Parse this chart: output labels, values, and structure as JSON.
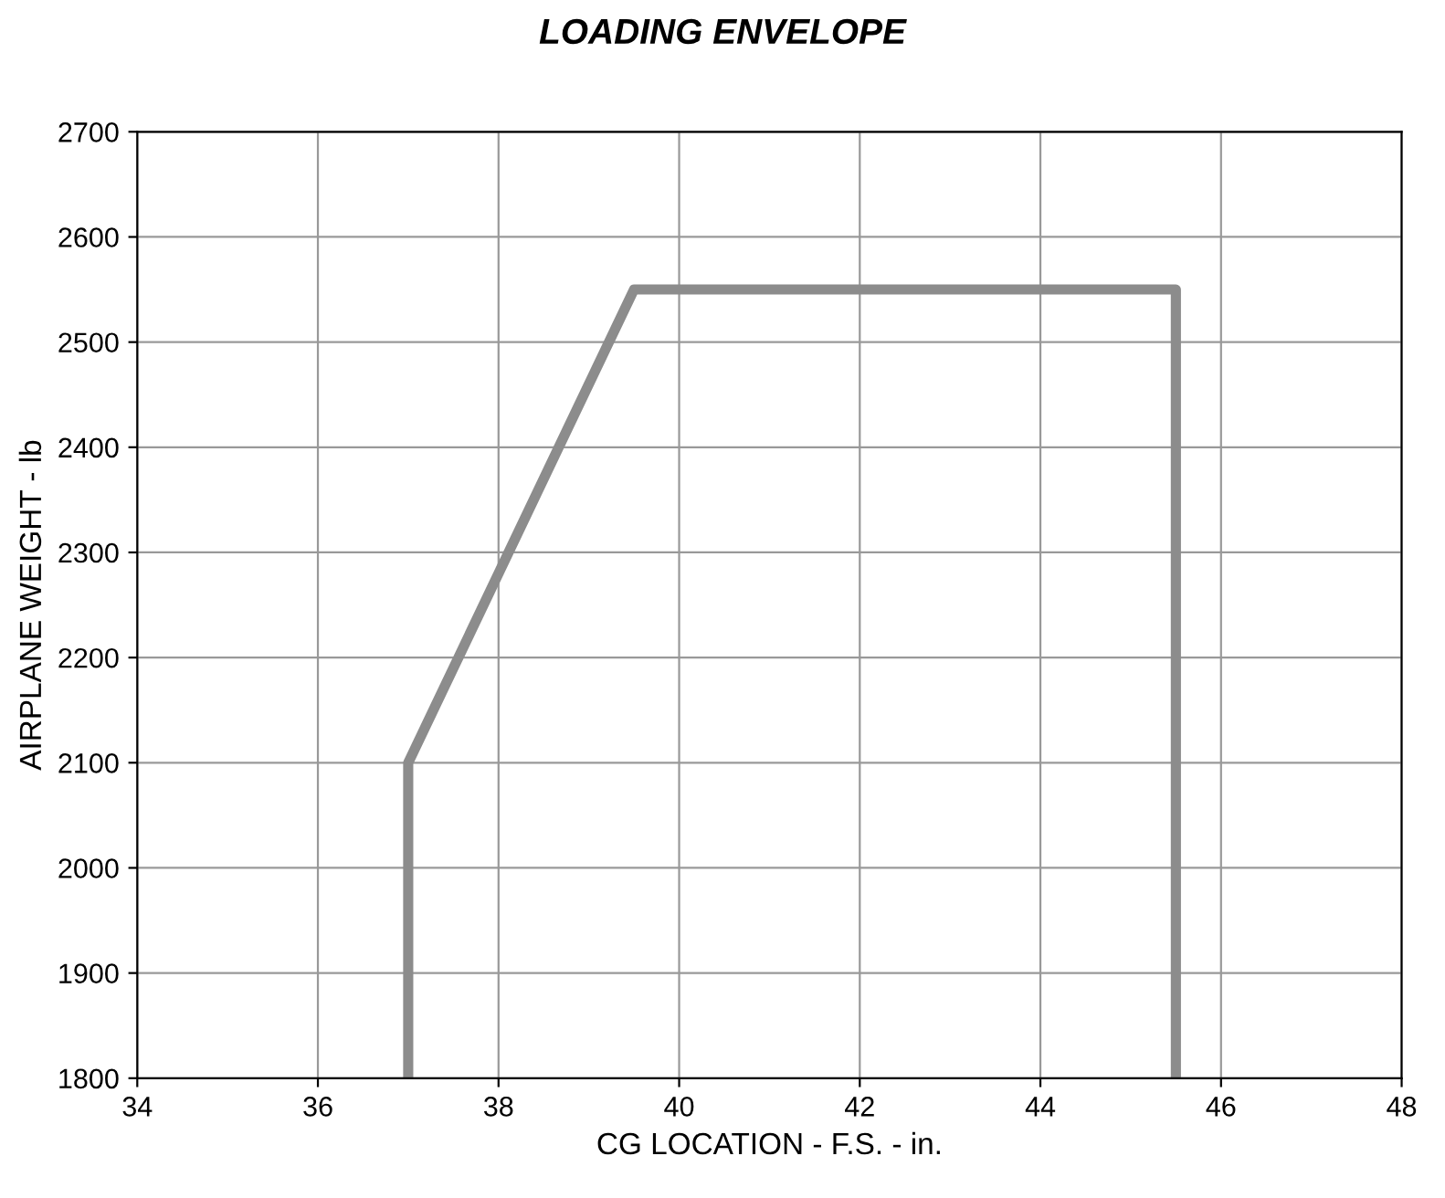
{
  "chart_data": {
    "type": "line",
    "title": "LOADING ENVELOPE",
    "xlabel": "CG LOCATION - F.S. - in.",
    "ylabel": "AIRPLANE WEIGHT - lb",
    "series": [
      {
        "color": "#8c8c8c",
        "x": [
          37.0,
          37.0,
          39.5,
          45.5,
          45.5
        ],
        "values": [
          1800,
          2100,
          2550,
          2550,
          1800
        ]
      }
    ],
    "xlim": [
      34,
      48
    ],
    "xticks": [
      34,
      36,
      38,
      40,
      42,
      44,
      46,
      48
    ],
    "ylim": [
      1800,
      2700
    ],
    "yticks": [
      1800,
      1900,
      2000,
      2100,
      2200,
      2300,
      2400,
      2500,
      2600,
      2700
    ],
    "grid": true,
    "marker": "none",
    "line_style": "solid"
  }
}
